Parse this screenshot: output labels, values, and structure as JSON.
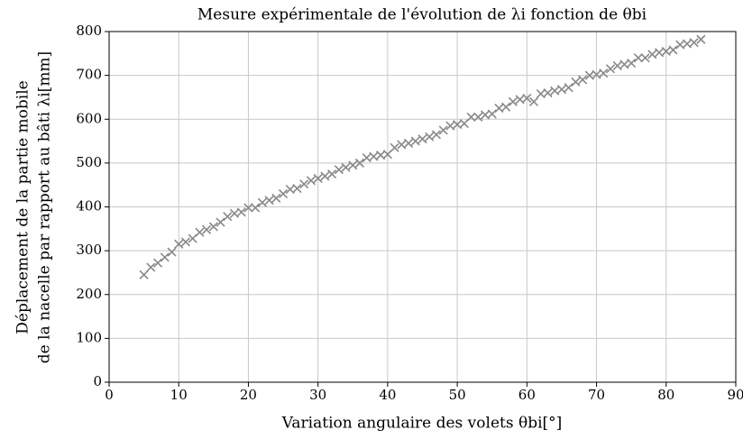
{
  "chart_data": {
    "type": "scatter",
    "title": "Mesure expérimentale de l'évolution de λi fonction de θbi",
    "xlabel": "Variation angulaire des volets θbi[°]",
    "ylabel": [
      "Déplacement de la partie mobile",
      "de la nacelle par rapport au bâti λi[mm]"
    ],
    "marker": "x",
    "color": "#888888",
    "grid": true,
    "xlim": [
      0,
      90
    ],
    "xticks": [
      0,
      10,
      20,
      30,
      40,
      50,
      60,
      70,
      80,
      90
    ],
    "ylim": [
      0,
      800
    ],
    "yticks": [
      0,
      100,
      200,
      300,
      400,
      500,
      600,
      700,
      800
    ],
    "x": [
      5,
      6,
      7,
      8,
      9,
      10,
      11,
      12,
      13,
      14,
      15,
      16,
      17,
      18,
      19,
      20,
      21,
      22,
      23,
      24,
      25,
      26,
      27,
      28,
      29,
      30,
      31,
      32,
      33,
      34,
      35,
      36,
      37,
      38,
      39,
      40,
      41,
      42,
      43,
      44,
      45,
      46,
      47,
      48,
      49,
      50,
      51,
      52,
      53,
      54,
      55,
      56,
      57,
      58,
      59,
      60,
      61,
      62,
      63,
      64,
      65,
      66,
      67,
      68,
      69,
      70,
      71,
      72,
      73,
      74,
      75,
      76,
      77,
      78,
      79,
      80,
      81,
      82,
      83,
      84,
      85
    ],
    "values": [
      245,
      262,
      272,
      285,
      297,
      315,
      320,
      328,
      342,
      348,
      355,
      365,
      378,
      385,
      388,
      398,
      398,
      410,
      415,
      420,
      430,
      440,
      442,
      452,
      460,
      465,
      470,
      475,
      485,
      490,
      495,
      500,
      512,
      515,
      518,
      520,
      535,
      542,
      545,
      550,
      555,
      560,
      565,
      575,
      585,
      588,
      590,
      605,
      605,
      610,
      612,
      625,
      628,
      640,
      645,
      648,
      640,
      658,
      660,
      665,
      668,
      672,
      685,
      690,
      700,
      702,
      705,
      715,
      722,
      725,
      728,
      740,
      740,
      748,
      752,
      755,
      758,
      770,
      772,
      775,
      782
    ]
  }
}
